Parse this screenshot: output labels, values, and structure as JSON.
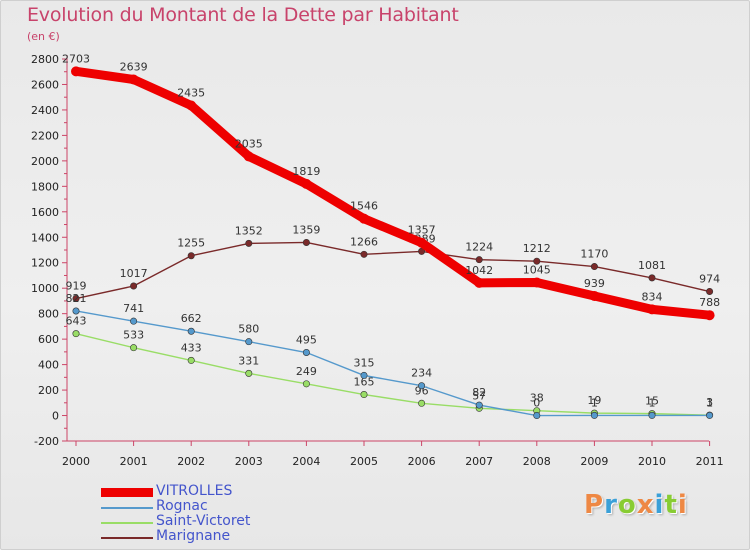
{
  "title": "Evolution du Montant de la Dette par Habitant",
  "subtitle": "(en €)",
  "logo": "Proxiti",
  "colors": {
    "title": "#c8436b",
    "legend_text": "#4455cc",
    "logo_letters": [
      "#ee8844",
      "#3aa0d8",
      "#88cc33",
      "#ee8844",
      "#3aa0d8",
      "#88cc33",
      "#ee8844"
    ]
  },
  "chart_data": {
    "type": "line",
    "title": "Evolution du Montant de la Dette par Habitant",
    "subtitle": "(en €)",
    "x": [
      "2000",
      "2001",
      "2002",
      "2003",
      "2004",
      "2005",
      "2006",
      "2007",
      "2008",
      "2009",
      "2010",
      "2011"
    ],
    "ylim": [
      -200,
      2800
    ],
    "yticks": [
      -200,
      0,
      200,
      400,
      600,
      800,
      1000,
      1200,
      1400,
      1600,
      1800,
      2000,
      2200,
      2400,
      2600,
      2800
    ],
    "grid": false,
    "legend_position": "bottom-left",
    "series": [
      {
        "name": "Marignane",
        "color": "#7a2a2a",
        "values": [
          919,
          1017,
          1255,
          1352,
          1359,
          1266,
          1289,
          1224,
          1212,
          1170,
          1081,
          974
        ],
        "labels": [
          "919",
          "1017",
          "1255",
          "1352",
          "1359",
          "1266",
          "1289",
          "1224",
          "1212",
          "1170",
          "1081",
          "974"
        ]
      },
      {
        "name": "Saint-Victoret",
        "color": "#99dd66",
        "values": [
          643,
          533,
          433,
          331,
          249,
          165,
          96,
          57,
          38,
          19,
          15,
          3
        ],
        "labels": [
          "643",
          "533",
          "433",
          "331",
          "249",
          "165",
          "96",
          "57",
          "38",
          "19",
          "15",
          "3"
        ]
      },
      {
        "name": "Rognac",
        "color": "#5599cc",
        "values": [
          821,
          741,
          662,
          580,
          495,
          315,
          234,
          82,
          0,
          1,
          1,
          1
        ],
        "labels": [
          "821",
          "741",
          "662",
          "580",
          "495",
          "315",
          "234",
          "82",
          "0",
          "1",
          "1",
          "1"
        ]
      },
      {
        "name": "VITROLLES",
        "color": "#ee0000",
        "values": [
          2703,
          2639,
          2435,
          2035,
          1819,
          1546,
          1357,
          1042,
          1045,
          939,
          834,
          788
        ],
        "labels": [
          "2703",
          "2639",
          "2435",
          "2035",
          "1819",
          "1546",
          "1357",
          "1042",
          "1045",
          "939",
          "834",
          "788"
        ]
      }
    ],
    "legend_order": [
      "VITROLLES",
      "Rognac",
      "Saint-Victoret",
      "Marignane"
    ]
  }
}
